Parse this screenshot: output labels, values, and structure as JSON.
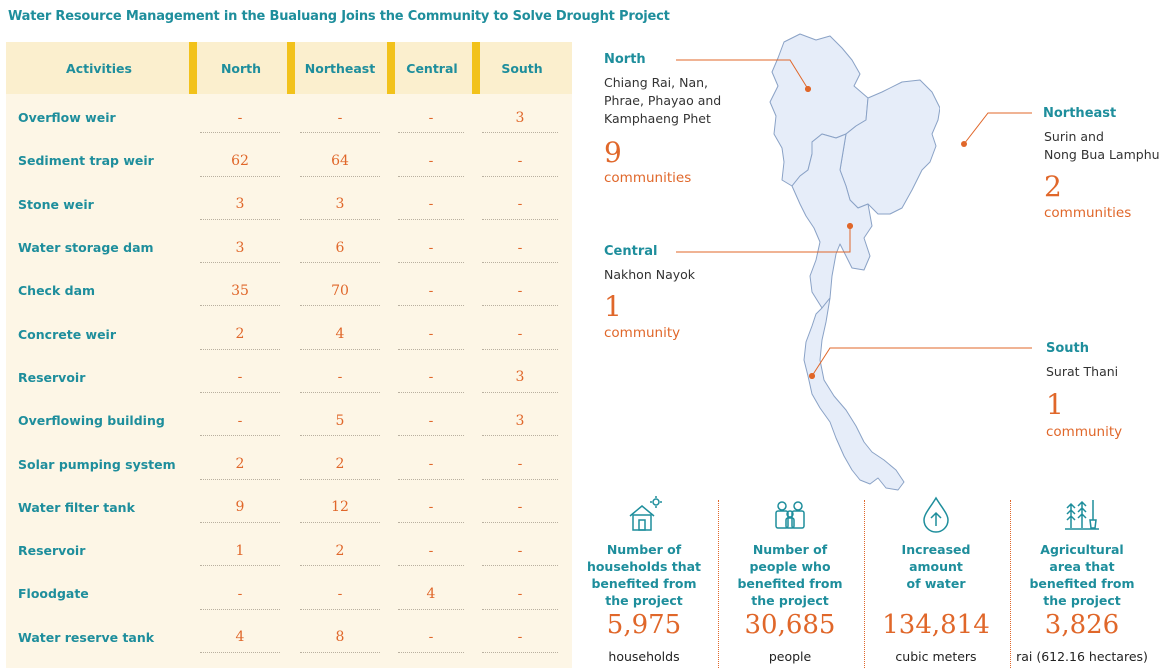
{
  "title": "Water Resource Management in the Bualuang Joins the Community to Solve Drought Project",
  "table": {
    "headers": [
      "Activities",
      "North",
      "Northeast",
      "Central",
      "South"
    ],
    "rows": [
      {
        "activity": "Overflow weir",
        "north": "-",
        "northeast": "-",
        "central": "-",
        "south": "3"
      },
      {
        "activity": "Sediment trap weir",
        "north": "62",
        "northeast": "64",
        "central": "-",
        "south": "-"
      },
      {
        "activity": "Stone weir",
        "north": "3",
        "northeast": "3",
        "central": "-",
        "south": "-"
      },
      {
        "activity": "Water storage dam",
        "north": "3",
        "northeast": "6",
        "central": "-",
        "south": "-"
      },
      {
        "activity": "Check dam",
        "north": "35",
        "northeast": "70",
        "central": "-",
        "south": "-"
      },
      {
        "activity": "Concrete weir",
        "north": "2",
        "northeast": "4",
        "central": "-",
        "south": "-"
      },
      {
        "activity": "Reservoir",
        "north": "-",
        "northeast": "-",
        "central": "-",
        "south": "3"
      },
      {
        "activity": "Overflowing building",
        "north": "-",
        "northeast": "5",
        "central": "-",
        "south": "3"
      },
      {
        "activity": "Solar pumping system",
        "north": "2",
        "northeast": "2",
        "central": "-",
        "south": "-"
      },
      {
        "activity": "Water filter tank",
        "north": "9",
        "northeast": "12",
        "central": "-",
        "south": "-"
      },
      {
        "activity": "Reservoir",
        "north": "1",
        "northeast": "2",
        "central": "-",
        "south": "-"
      },
      {
        "activity": "Floodgate",
        "north": "-",
        "northeast": "-",
        "central": "4",
        "south": "-"
      },
      {
        "activity": "Water reserve tank",
        "north": "4",
        "northeast": "8",
        "central": "-",
        "south": "-"
      }
    ]
  },
  "regions": {
    "north": {
      "name": "North",
      "provinces": [
        "Chiang Rai, Nan,",
        "Phrae, Phayao and",
        "Kamphaeng Phet"
      ],
      "count": "9",
      "unit": "communities"
    },
    "northeast": {
      "name": "Northeast",
      "provinces": [
        "Surin and",
        "Nong Bua Lamphu"
      ],
      "count": "2",
      "unit": "communities"
    },
    "central": {
      "name": "Central",
      "provinces": [
        "Nakhon Nayok"
      ],
      "count": "1",
      "unit": "community"
    },
    "south": {
      "name": "South",
      "provinces": [
        "Surat Thani"
      ],
      "count": "1",
      "unit": "community"
    }
  },
  "stats": [
    {
      "icon": "house-icon",
      "label": "Number of\nhouseholds that\nbenefited from\nthe project",
      "value": "5,975",
      "unit": "households"
    },
    {
      "icon": "people-icon",
      "label": "Number of\npeople who\nbenefited from\nthe project",
      "value": "30,685",
      "unit": "people"
    },
    {
      "icon": "water-drop-icon",
      "label": "Increased\namount\nof water",
      "value": "134,814",
      "unit": "cubic meters"
    },
    {
      "icon": "crops-icon",
      "label": "Agricultural\narea that\nbenefited from\nthe project",
      "value": "3,826",
      "unit": "rai (612.16 hectares)"
    }
  ],
  "colors": {
    "teal": "#1e8e9c",
    "orange": "#e0672a",
    "yellow": "#f2c21b",
    "table_bg": "#fdf6e6",
    "map_fill": "#e6edf9"
  }
}
